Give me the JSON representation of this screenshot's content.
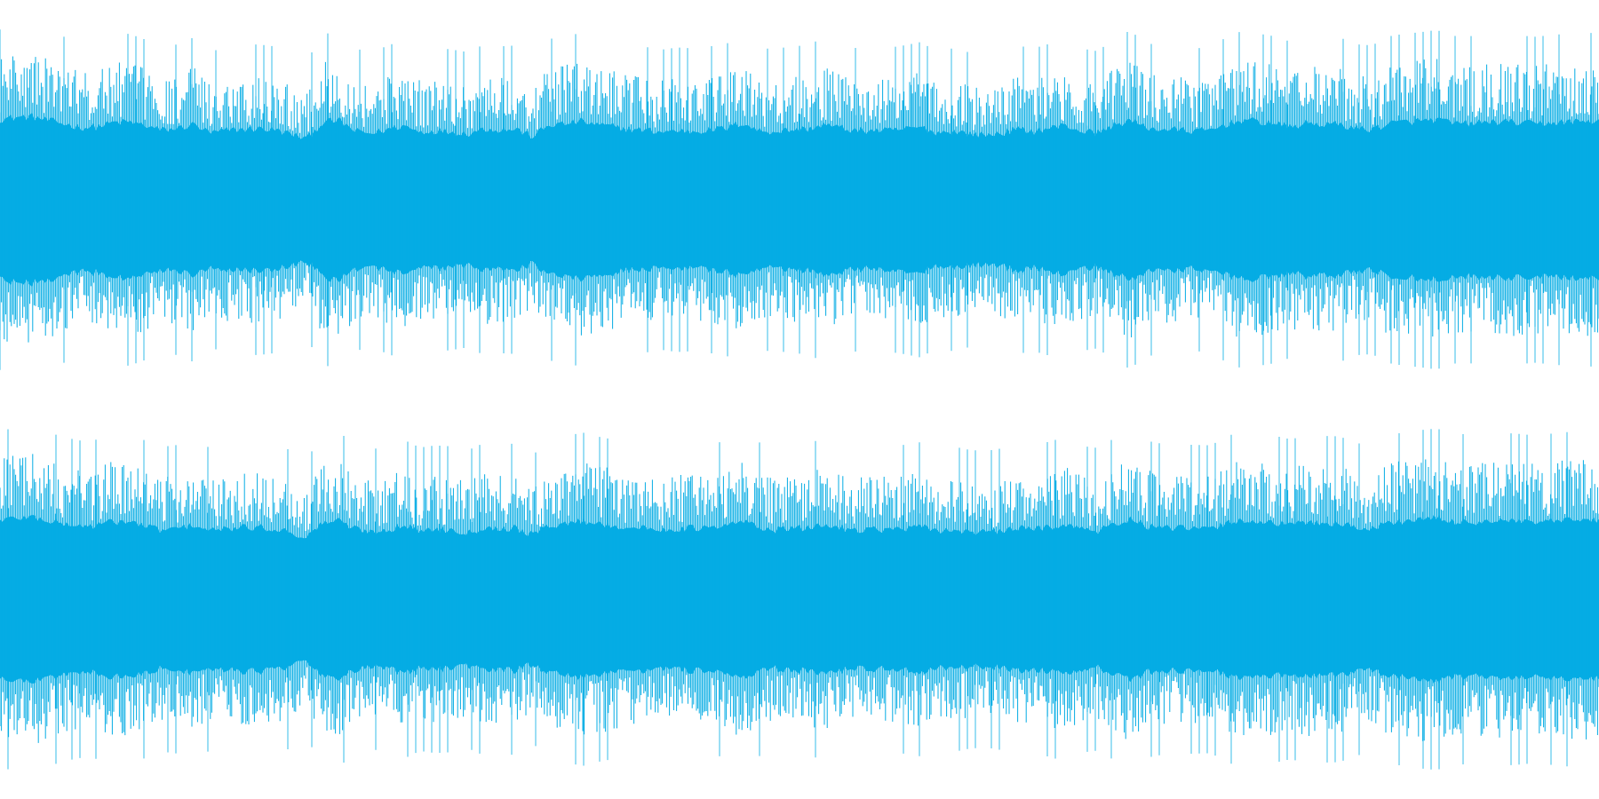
{
  "image": {
    "type": "stereo-audio-waveform",
    "channels": 2,
    "colors": {
      "background": "#ffffff",
      "waveform": "#05ace4"
    }
  },
  "waveform": {
    "channel_1": {
      "envelope": [
        0.88,
        0.94,
        0.96,
        0.84,
        0.74,
        0.63,
        0.65,
        0.78,
        0.8,
        0.69,
        0.55,
        0.6,
        0.73,
        0.46,
        0.54,
        0.58,
        0.6,
        0.56,
        0.44,
        0.29,
        0.79,
        0.84,
        0.52,
        0.45,
        0.57,
        0.69,
        0.5,
        0.54,
        0.5,
        0.45,
        0.6,
        0.56,
        0.58,
        0.36,
        0.7,
        0.74,
        0.82,
        0.71,
        0.66,
        0.58,
        0.55,
        0.5,
        0.54,
        0.52,
        0.56,
        0.61,
        0.78,
        0.53,
        0.51,
        0.56,
        0.58,
        0.72,
        0.63,
        0.53,
        0.55,
        0.53,
        0.58,
        0.64,
        0.48,
        0.52,
        0.45,
        0.4,
        0.46,
        0.58,
        0.52,
        0.61,
        0.7,
        0.52,
        0.47,
        0.7,
        0.86,
        0.62,
        0.58,
        0.56,
        0.52,
        0.55,
        0.74,
        0.86,
        0.8,
        0.75,
        0.64,
        0.77,
        0.72,
        0.73,
        0.6,
        0.58,
        0.75,
        0.8,
        0.83,
        0.87,
        0.76,
        0.75,
        0.79,
        0.81,
        0.78,
        0.74,
        0.77,
        0.8,
        0.82,
        0.81
      ]
    },
    "channel_2": {
      "envelope": [
        0.85,
        0.9,
        0.94,
        0.82,
        0.72,
        0.66,
        0.68,
        0.8,
        0.79,
        0.66,
        0.54,
        0.58,
        0.7,
        0.52,
        0.57,
        0.61,
        0.62,
        0.58,
        0.48,
        0.31,
        0.78,
        0.82,
        0.58,
        0.49,
        0.56,
        0.68,
        0.53,
        0.57,
        0.55,
        0.48,
        0.62,
        0.58,
        0.61,
        0.38,
        0.69,
        0.72,
        0.82,
        0.74,
        0.68,
        0.61,
        0.58,
        0.56,
        0.58,
        0.6,
        0.59,
        0.66,
        0.82,
        0.63,
        0.55,
        0.58,
        0.59,
        0.71,
        0.61,
        0.56,
        0.58,
        0.55,
        0.58,
        0.63,
        0.52,
        0.55,
        0.49,
        0.46,
        0.51,
        0.59,
        0.57,
        0.64,
        0.73,
        0.56,
        0.52,
        0.7,
        0.88,
        0.66,
        0.6,
        0.59,
        0.58,
        0.57,
        0.74,
        0.85,
        0.79,
        0.75,
        0.68,
        0.79,
        0.75,
        0.74,
        0.61,
        0.59,
        0.76,
        0.82,
        0.86,
        0.89,
        0.79,
        0.78,
        0.8,
        0.81,
        0.79,
        0.76,
        0.79,
        0.82,
        0.84,
        0.83
      ]
    }
  }
}
